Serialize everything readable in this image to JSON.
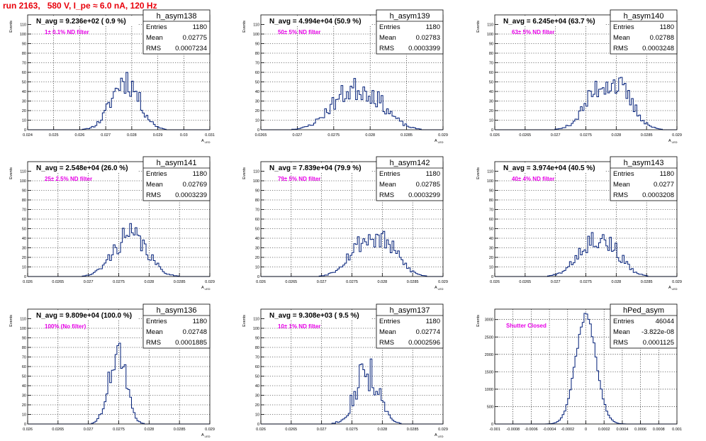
{
  "page": {
    "title": "run 2163,   580 V, I_pe ≈ 6.0 nA, 120 Hz"
  },
  "chart_data": [
    {
      "type": "histogram",
      "name": "h_asym138",
      "stats": {
        "Entries": "1180",
        "Mean": "0.02775",
        "RMS": "0.0007234"
      },
      "navg": "N_avg = 9.236e+02 ( 0.9 %)",
      "filter": "1± 0.1% ND filter",
      "ylabel": "Events",
      "xlabel": "A_LED",
      "xlim": [
        0.024,
        0.031
      ],
      "ylim": [
        0,
        120
      ],
      "xticks": [
        "0.024",
        "0.025",
        "0.026",
        "0.027",
        "0.028",
        "0.029",
        "0.03",
        "0.031"
      ],
      "yticks": [
        "0",
        "10",
        "20",
        "30",
        "40",
        "50",
        "60",
        "70",
        "80",
        "90",
        "100",
        "110"
      ],
      "mean": 0.02775,
      "rms": 0.0007234,
      "peak": 55,
      "jitter": 0.3,
      "bimodal": 0.15,
      "seed": 11
    },
    {
      "type": "histogram",
      "name": "h_asym139",
      "stats": {
        "Entries": "1180",
        "Mean": "0.02783",
        "RMS": "0.0003399"
      },
      "navg": "N_avg = 4.994e+04 (50.9 %)",
      "filter": "50± 5% ND filter",
      "ylabel": "Events",
      "xlabel": "A_LED",
      "xlim": [
        0.0265,
        0.029
      ],
      "ylim": [
        0,
        120
      ],
      "xticks": [
        "0.0265",
        "0.027",
        "0.0275",
        "0.028",
        "0.0285",
        "0.029"
      ],
      "yticks": [
        "0",
        "10",
        "20",
        "30",
        "40",
        "50",
        "60",
        "70",
        "80",
        "90",
        "100",
        "110"
      ],
      "mean": 0.02783,
      "rms": 0.0003399,
      "peak": 45,
      "jitter": 0.3,
      "bimodal": 0.75,
      "seed": 23
    },
    {
      "type": "histogram",
      "name": "h_asym140",
      "stats": {
        "Entries": "1180",
        "Mean": "0.02788",
        "RMS": "0.0003248"
      },
      "navg": "N_avg = 6.245e+04 (63.7 %)",
      "filter": "63± 5% ND filter",
      "ylabel": "Events",
      "xlabel": "A_LED",
      "xlim": [
        0.026,
        0.029
      ],
      "ylim": [
        0,
        120
      ],
      "xticks": [
        "0.026",
        "0.0265",
        "0.027",
        "0.0275",
        "0.028",
        "0.0285",
        "0.029"
      ],
      "yticks": [
        "0",
        "10",
        "20",
        "30",
        "40",
        "50",
        "60",
        "70",
        "80",
        "90",
        "100",
        "110"
      ],
      "mean": 0.02788,
      "rms": 0.0003248,
      "peak": 52,
      "jitter": 0.3,
      "bimodal": 0.8,
      "seed": 37
    },
    {
      "type": "histogram",
      "name": "h_asym141",
      "stats": {
        "Entries": "1180",
        "Mean": "0.02769",
        "RMS": "0.0003239"
      },
      "navg": "N_avg = 2.548e+04 (26.0 %)",
      "filter": "25± 2.5% ND filter",
      "ylabel": "Events",
      "xlabel": "A_LED",
      "xlim": [
        0.026,
        0.029
      ],
      "ylim": [
        0,
        120
      ],
      "xticks": [
        "0.026",
        "0.0265",
        "0.027",
        "0.0275",
        "0.028",
        "0.0285",
        "0.029"
      ],
      "yticks": [
        "0",
        "10",
        "20",
        "30",
        "40",
        "50",
        "60",
        "70",
        "80",
        "90",
        "100",
        "110"
      ],
      "mean": 0.02769,
      "rms": 0.0003239,
      "peak": 45,
      "jitter": 0.3,
      "bimodal": 0.55,
      "seed": 41
    },
    {
      "type": "histogram",
      "name": "h_asym142",
      "stats": {
        "Entries": "1180",
        "Mean": "0.02785",
        "RMS": "0.0003299"
      },
      "navg": "N_avg = 7.839e+04 (79.9 %)",
      "filter": "79± 5% ND filter",
      "ylabel": "Events",
      "xlabel": "A_LED",
      "xlim": [
        0.026,
        0.029
      ],
      "ylim": [
        0,
        120
      ],
      "xticks": [
        "0.026",
        "0.0265",
        "0.027",
        "0.0275",
        "0.028",
        "0.0285",
        "0.029"
      ],
      "yticks": [
        "0",
        "10",
        "20",
        "30",
        "40",
        "50",
        "60",
        "70",
        "80",
        "90",
        "100",
        "110"
      ],
      "mean": 0.02785,
      "rms": 0.0003299,
      "peak": 42,
      "jitter": 0.3,
      "bimodal": 0.85,
      "seed": 53
    },
    {
      "type": "histogram",
      "name": "h_asym143",
      "stats": {
        "Entries": "1180",
        "Mean": "0.0277",
        "RMS": "0.0003208"
      },
      "navg": "N_avg = 3.974e+04 (40.5 %)",
      "filter": "40± 4% ND filter",
      "ylabel": "Events",
      "xlabel": "A_LED",
      "xlim": [
        0.026,
        0.029
      ],
      "ylim": [
        0,
        120
      ],
      "xticks": [
        "0.026",
        "0.0265",
        "0.027",
        "0.0275",
        "0.028",
        "0.0285",
        "0.029"
      ],
      "yticks": [
        "0",
        "10",
        "20",
        "30",
        "40",
        "50",
        "60",
        "70",
        "80",
        "90",
        "100",
        "110"
      ],
      "mean": 0.0277,
      "rms": 0.0003208,
      "peak": 42,
      "jitter": 0.3,
      "bimodal": 0.75,
      "seed": 67
    },
    {
      "type": "histogram",
      "name": "h_asym136",
      "stats": {
        "Entries": "1180",
        "Mean": "0.02748",
        "RMS": "0.0001885"
      },
      "navg": "N_avg = 9.809e+04 (100.0 %)",
      "filter": "100% (No filter)",
      "ylabel": "Events",
      "xlabel": "A_LED",
      "xlim": [
        0.026,
        0.029
      ],
      "ylim": [
        0,
        120
      ],
      "xticks": [
        "0.026",
        "0.0265",
        "0.027",
        "0.0275",
        "0.028",
        "0.0285",
        "0.029"
      ],
      "yticks": [
        "0",
        "10",
        "20",
        "30",
        "40",
        "50",
        "60",
        "70",
        "80",
        "90",
        "100",
        "110"
      ],
      "mean": 0.02748,
      "rms": 0.0001885,
      "peak": 80,
      "jitter": 0.25,
      "bimodal": 0.2,
      "seed": 71
    },
    {
      "type": "histogram",
      "name": "h_asym137",
      "stats": {
        "Entries": "1180",
        "Mean": "0.02774",
        "RMS": "0.0002596"
      },
      "navg": "N_avg = 9.308e+03 ( 9.5 %)",
      "filter": "10± 1% ND filter",
      "ylabel": "Events",
      "xlabel": "A_LED",
      "xlim": [
        0.026,
        0.029
      ],
      "ylim": [
        0,
        120
      ],
      "xticks": [
        "0.026",
        "0.0265",
        "0.027",
        "0.0275",
        "0.028",
        "0.0285",
        "0.029"
      ],
      "yticks": [
        "0",
        "10",
        "20",
        "30",
        "40",
        "50",
        "60",
        "70",
        "80",
        "90",
        "100",
        "110"
      ],
      "mean": 0.02774,
      "rms": 0.0002596,
      "peak": 60,
      "jitter": 0.4,
      "bimodal": 0.1,
      "seed": 83
    },
    {
      "type": "histogram",
      "name": "hPed_asym",
      "stats": {
        "Entries": "46044",
        "Mean": "-3.822e-08",
        "RMS": "0.0001125"
      },
      "navg": "",
      "filter": "Shutter Closed",
      "ylabel": "Events",
      "xlabel": "",
      "xlim": [
        -0.001,
        0.001
      ],
      "ylim": [
        0,
        3300
      ],
      "xticks": [
        "-0.001",
        "-0.0008",
        "-0.0006",
        "-0.0004",
        "-0.0002",
        "0",
        "0.0002",
        "0.0004",
        "0.0006",
        "0.0008",
        "0.001"
      ],
      "yticks": [
        "0",
        "500",
        "1000",
        "1500",
        "2000",
        "2500",
        "3000"
      ],
      "mean": 0.0,
      "rms": 0.0001125,
      "peak": 3100,
      "jitter": 0.04,
      "bimodal": 0,
      "seed": 97
    }
  ]
}
